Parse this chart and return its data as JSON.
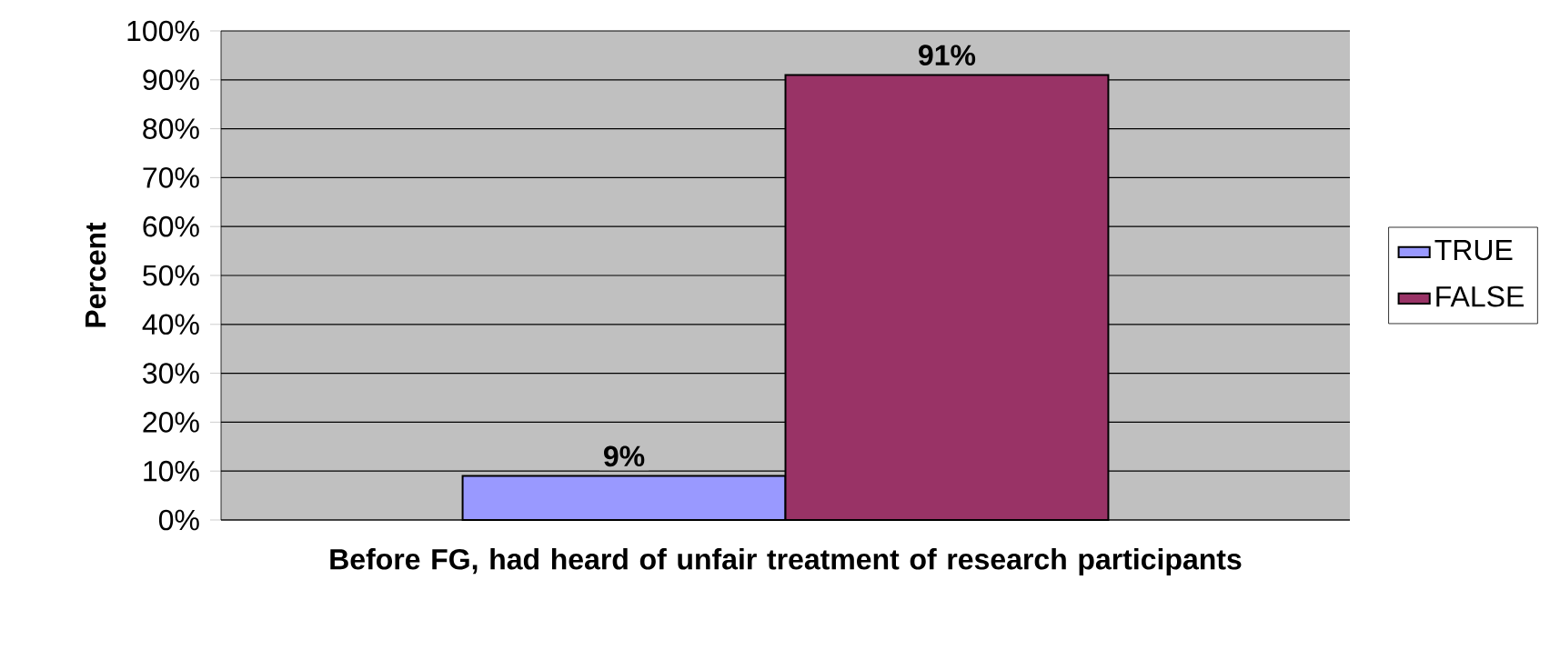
{
  "chart_data": {
    "type": "bar",
    "xlabel": "Before FG, had heard of unfair treatment of research participants",
    "ylabel": "Percent",
    "categories": [
      null
    ],
    "series": [
      {
        "name": "TRUE",
        "color": "#9999ff",
        "values": [
          9
        ],
        "value_labels": [
          "9%"
        ]
      },
      {
        "name": "FALSE",
        "color": "#993366",
        "values": [
          91
        ],
        "value_labels": [
          "91%"
        ]
      }
    ],
    "ylim": [
      0,
      100
    ],
    "yticks": [
      {
        "value": 0,
        "label": "0%"
      },
      {
        "value": 10,
        "label": "10%"
      },
      {
        "value": 20,
        "label": "20%"
      },
      {
        "value": 30,
        "label": "30%"
      },
      {
        "value": 40,
        "label": "40%"
      },
      {
        "value": 50,
        "label": "50%"
      },
      {
        "value": 60,
        "label": "60%"
      },
      {
        "value": 70,
        "label": "70%"
      },
      {
        "value": 80,
        "label": "80%"
      },
      {
        "value": 90,
        "label": "90%"
      },
      {
        "value": 100,
        "label": "100%"
      }
    ],
    "grid": "y",
    "legend": "right"
  }
}
